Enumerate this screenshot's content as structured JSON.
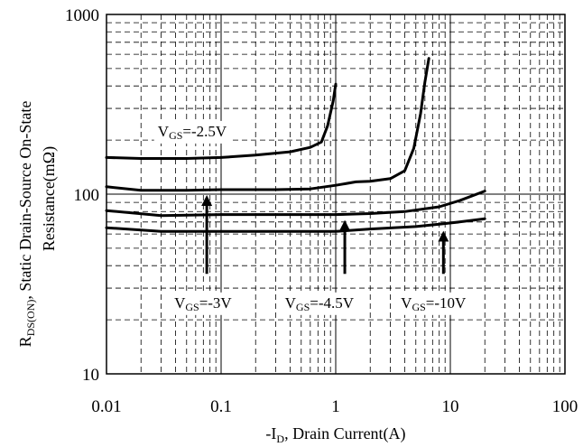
{
  "chart_data": {
    "type": "line",
    "xscale": "log",
    "yscale": "log",
    "xlim": [
      0.01,
      100
    ],
    "ylim": [
      10,
      1000
    ],
    "grid": true,
    "xlabel": {
      "pre": "-I",
      "sub": "D",
      "post": ", Drain Current(A)"
    },
    "ylabel": {
      "line1_pre": "R",
      "line1_sub": "DS(ON)",
      "line1_post": ", Static Drain-Source On-State",
      "line2": "Resistance(mΩ)"
    },
    "x_ticks": [
      {
        "value": 0.01,
        "label": "0.01"
      },
      {
        "value": 0.1,
        "label": "0.1"
      },
      {
        "value": 1,
        "label": "1"
      },
      {
        "value": 10,
        "label": "10"
      },
      {
        "value": 100,
        "label": "100"
      }
    ],
    "y_ticks": [
      {
        "value": 10,
        "label": "10"
      },
      {
        "value": 100,
        "label": "100"
      },
      {
        "value": 1000,
        "label": "1000"
      }
    ],
    "series": [
      {
        "name": "VGS=-2.5V",
        "x": [
          0.01,
          0.02,
          0.05,
          0.1,
          0.2,
          0.4,
          0.6,
          0.75,
          0.85,
          0.95,
          1.0
        ],
        "y": [
          160,
          158,
          158,
          160,
          165,
          172,
          182,
          195,
          240,
          330,
          410
        ]
      },
      {
        "name": "VGS=-3V",
        "x": [
          0.01,
          0.02,
          0.05,
          0.1,
          0.3,
          0.6,
          1.0,
          1.5,
          2,
          3,
          4,
          4.8,
          5.5,
          6,
          6.5
        ],
        "y": [
          110,
          105,
          105,
          106,
          106,
          107,
          112,
          117,
          118,
          122,
          135,
          180,
          280,
          420,
          570
        ]
      },
      {
        "name": "VGS=-4.5V",
        "x": [
          0.01,
          0.03,
          0.1,
          0.5,
          1,
          2,
          4,
          8,
          12,
          20
        ],
        "y": [
          81,
          76,
          77,
          77,
          77,
          78,
          80,
          85,
          92,
          104
        ]
      },
      {
        "name": "VGS=-10V",
        "x": [
          0.01,
          0.03,
          0.1,
          0.5,
          1,
          2,
          5,
          8,
          12,
          20
        ],
        "y": [
          65,
          62,
          62,
          62,
          62,
          64,
          66,
          68,
          70,
          73
        ]
      }
    ],
    "annotations": [
      {
        "id": "vgs25",
        "pre": "V",
        "sub": "GS",
        "post": "=-2.5V",
        "x": 0.028,
        "y": 225
      },
      {
        "id": "vgs3",
        "pre": "V",
        "sub": "GS",
        "post": "=-3V",
        "x": 0.039,
        "y": 25
      },
      {
        "id": "vgs45",
        "pre": "V",
        "sub": "GS",
        "post": "=-4.5V",
        "x": 0.36,
        "y": 25
      },
      {
        "id": "vgs10",
        "pre": "V",
        "sub": "GS",
        "post": "=-10V",
        "x": 3.7,
        "y": 25
      }
    ],
    "arrows": [
      {
        "x": 0.075,
        "y_from": 36,
        "y_to": 106
      },
      {
        "x": 1.2,
        "y_from": 36,
        "y_to": 77
      },
      {
        "x": 8.7,
        "y_from": 36,
        "y_to": 67
      }
    ]
  }
}
